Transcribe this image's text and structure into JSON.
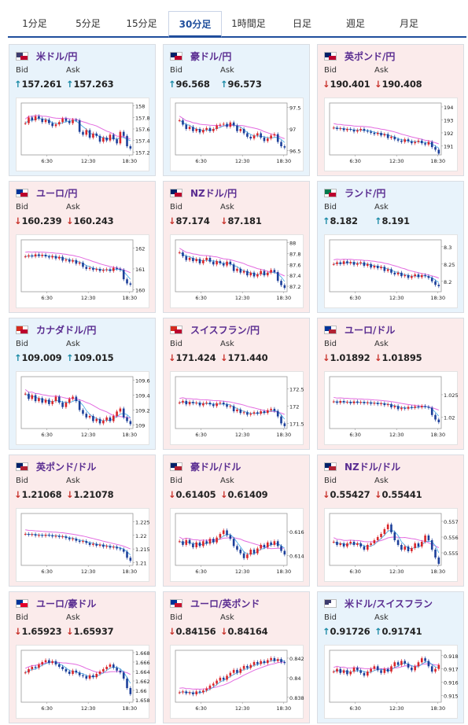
{
  "tabs": [
    {
      "label": "1分足",
      "active": false
    },
    {
      "label": "5分足",
      "active": false
    },
    {
      "label": "15分足",
      "active": false
    },
    {
      "label": "30分足",
      "active": true
    },
    {
      "label": "1時間足",
      "active": false
    },
    {
      "label": "日足",
      "active": false
    },
    {
      "label": "週足",
      "active": false
    },
    {
      "label": "月足",
      "active": false
    }
  ],
  "labels": {
    "bid": "Bid",
    "ask": "Ask"
  },
  "colors": {
    "up_bg": "#e8f3fb",
    "down_bg": "#fbebeb",
    "candle_up": "#d9262a",
    "candle_down": "#1d3f9a",
    "ma_long": "#e36be0",
    "ma_short": "#5bb4e8"
  },
  "cards": [
    {
      "name": "usd-jpy",
      "pair": "米ドル/円",
      "dir": "up",
      "bid": "157.261",
      "ask": "157.263",
      "flag": "us-jp",
      "chart_data": {
        "type": "candlestick",
        "x_ticks": [
          "6:30",
          "12:30",
          "18:30"
        ],
        "y_ticks": [
          "158",
          "157.8",
          "157.6",
          "157.4",
          "157.2"
        ],
        "ylim": [
          157.15,
          158.05
        ],
        "close": [
          157.7,
          157.8,
          157.75,
          157.82,
          157.78,
          157.72,
          157.76,
          157.7,
          157.65,
          157.68,
          157.72,
          157.78,
          157.74,
          157.7,
          157.76,
          157.75,
          157.55,
          157.5,
          157.58,
          157.45,
          157.52,
          157.48,
          157.38,
          157.45,
          157.4,
          157.5,
          157.42,
          157.35,
          157.55,
          157.48,
          157.3,
          157.26
        ]
      }
    },
    {
      "name": "aud-jpy",
      "pair": "豪ドル/円",
      "dir": "up",
      "bid": "96.568",
      "ask": "96.573",
      "flag": "au-jp",
      "chart_data": {
        "type": "candlestick",
        "x_ticks": [
          "6:30",
          "12:30",
          "18:30"
        ],
        "y_ticks": [
          "97.5",
          "97",
          "96.5"
        ],
        "ylim": [
          96.4,
          97.6
        ],
        "close": [
          97.2,
          97.1,
          97.0,
          97.05,
          96.95,
          97.0,
          96.92,
          96.98,
          97.02,
          96.95,
          97.0,
          97.08,
          97.1,
          97.12,
          97.05,
          97.15,
          97.08,
          96.95,
          97.0,
          96.9,
          96.82,
          96.78,
          96.85,
          96.9,
          96.8,
          96.72,
          96.78,
          96.85,
          96.88,
          96.7,
          96.6,
          96.57
        ]
      }
    },
    {
      "name": "gbp-jpy",
      "pair": "英ポンド/円",
      "dir": "down",
      "bid": "190.401",
      "ask": "190.408",
      "flag": "gb-jp",
      "chart_data": {
        "type": "candlestick",
        "x_ticks": [
          "6:30",
          "12:30",
          "18:30"
        ],
        "y_ticks": [
          "194",
          "193",
          "192",
          "191"
        ],
        "ylim": [
          190.3,
          194.3
        ],
        "close": [
          192.4,
          192.3,
          192.35,
          192.2,
          192.3,
          192.25,
          192.1,
          192.2,
          192.3,
          192.15,
          192.1,
          192.0,
          191.9,
          192.0,
          191.8,
          191.9,
          191.6,
          191.7,
          191.5,
          191.4,
          191.3,
          191.5,
          191.35,
          191.2,
          191.3,
          191.4,
          191.2,
          191.1,
          191.3,
          190.9,
          190.7,
          190.4
        ]
      }
    },
    {
      "name": "eur-jpy",
      "pair": "ユーロ/円",
      "dir": "down",
      "bid": "160.239",
      "ask": "160.243",
      "flag": "eu-jp",
      "chart_data": {
        "type": "candlestick",
        "x_ticks": [
          "6:30",
          "12:30",
          "18:30"
        ],
        "y_ticks": [
          "162",
          "161",
          "160"
        ],
        "ylim": [
          159.9,
          162.4
        ],
        "close": [
          161.6,
          161.65,
          161.6,
          161.7,
          161.62,
          161.68,
          161.6,
          161.55,
          161.62,
          161.5,
          161.58,
          161.4,
          161.45,
          161.35,
          161.42,
          161.25,
          161.3,
          161.1,
          161.0,
          161.05,
          160.95,
          161.0,
          160.9,
          160.95,
          160.98,
          160.9,
          161.05,
          161.0,
          160.95,
          160.5,
          160.3,
          160.24
        ]
      }
    },
    {
      "name": "nzd-jpy",
      "pair": "NZドル/円",
      "dir": "down",
      "bid": "87.174",
      "ask": "87.181",
      "flag": "nz-jp",
      "chart_data": {
        "type": "candlestick",
        "x_ticks": [
          "6:30",
          "12:30",
          "18:30"
        ],
        "y_ticks": [
          "88",
          "87.8",
          "87.6",
          "87.4",
          "87.2"
        ],
        "ylim": [
          87.1,
          88.05
        ],
        "close": [
          87.82,
          87.75,
          87.68,
          87.72,
          87.66,
          87.7,
          87.62,
          87.68,
          87.72,
          87.65,
          87.6,
          87.66,
          87.62,
          87.58,
          87.65,
          87.6,
          87.48,
          87.52,
          87.45,
          87.48,
          87.4,
          87.45,
          87.38,
          87.42,
          87.48,
          87.4,
          87.45,
          87.5,
          87.46,
          87.3,
          87.22,
          87.17
        ]
      }
    },
    {
      "name": "zar-jpy",
      "pair": "ランド/円",
      "dir": "up",
      "bid": "8.182",
      "ask": "8.191",
      "flag": "za-jp",
      "chart_data": {
        "type": "candlestick",
        "x_ticks": [
          "6:30",
          "12:30",
          "18:30"
        ],
        "y_ticks": [
          "8.3",
          "8.25",
          "8.2"
        ],
        "ylim": [
          8.17,
          8.32
        ],
        "close": [
          8.25,
          8.255,
          8.25,
          8.258,
          8.252,
          8.256,
          8.248,
          8.252,
          8.255,
          8.245,
          8.25,
          8.24,
          8.245,
          8.238,
          8.242,
          8.23,
          8.235,
          8.225,
          8.22,
          8.225,
          8.215,
          8.218,
          8.21,
          8.215,
          8.22,
          8.212,
          8.218,
          8.215,
          8.21,
          8.2,
          8.19,
          8.186
        ]
      }
    },
    {
      "name": "cad-jpy",
      "pair": "カナダドル/円",
      "dir": "up",
      "bid": "109.009",
      "ask": "109.015",
      "flag": "ca-jp",
      "chart_data": {
        "type": "candlestick",
        "x_ticks": [
          "6:30",
          "12:30",
          "18:30"
        ],
        "y_ticks": [
          "109.6",
          "109.4",
          "109.2",
          "109"
        ],
        "ylim": [
          108.95,
          109.65
        ],
        "close": [
          109.42,
          109.35,
          109.4,
          109.32,
          109.36,
          109.3,
          109.34,
          109.28,
          109.32,
          109.38,
          109.3,
          109.24,
          109.3,
          109.35,
          109.38,
          109.32,
          109.2,
          109.15,
          109.1,
          109.12,
          109.05,
          109.08,
          109.02,
          109.06,
          109.1,
          109.05,
          109.12,
          109.18,
          109.22,
          109.1,
          109.05,
          109.01
        ]
      }
    },
    {
      "name": "chf-jpy",
      "pair": "スイスフラン/円",
      "dir": "down",
      "bid": "171.424",
      "ask": "171.440",
      "flag": "ch-jp",
      "chart_data": {
        "type": "candlestick",
        "x_ticks": [
          "6:30",
          "12:30",
          "18:30"
        ],
        "y_ticks": [
          "172.5",
          "172",
          "171.5"
        ],
        "ylim": [
          171.35,
          172.85
        ],
        "close": [
          172.1,
          172.15,
          172.05,
          172.12,
          172.08,
          172.1,
          172.02,
          172.08,
          172.1,
          172.05,
          172.0,
          172.08,
          172.1,
          172.05,
          171.98,
          172.0,
          171.85,
          171.9,
          171.8,
          171.82,
          171.75,
          171.78,
          171.82,
          171.78,
          171.85,
          171.8,
          171.88,
          171.92,
          171.86,
          171.7,
          171.5,
          171.42
        ]
      }
    },
    {
      "name": "eur-usd",
      "pair": "ユーロ/ドル",
      "dir": "down",
      "bid": "1.01892",
      "ask": "1.01895",
      "flag": "eu-us",
      "chart_data": {
        "type": "candlestick",
        "x_ticks": [
          "6:30",
          "12:30",
          "18:30"
        ],
        "y_ticks": [
          "1.025",
          "1.02"
        ],
        "ylim": [
          1.0175,
          1.029
        ],
        "close": [
          1.0235,
          1.0232,
          1.0236,
          1.0233,
          1.0234,
          1.0231,
          1.0235,
          1.0232,
          1.0234,
          1.0231,
          1.0233,
          1.023,
          1.0232,
          1.0229,
          1.0231,
          1.0227,
          1.0229,
          1.0222,
          1.0225,
          1.0218,
          1.0221,
          1.0219,
          1.0223,
          1.0221,
          1.0224,
          1.0222,
          1.0225,
          1.0223,
          1.0221,
          1.0205,
          1.0195,
          1.0189
        ]
      }
    },
    {
      "name": "gbp-usd",
      "pair": "英ポンド/ドル",
      "dir": "down",
      "bid": "1.21068",
      "ask": "1.21078",
      "flag": "gb-us",
      "chart_data": {
        "type": "candlestick",
        "x_ticks": [
          "6:30",
          "12:30",
          "18:30"
        ],
        "y_ticks": [
          "1.225",
          "1.22",
          "1.215",
          "1.21"
        ],
        "ylim": [
          1.209,
          1.228
        ],
        "close": [
          1.2205,
          1.2202,
          1.2204,
          1.2199,
          1.2201,
          1.2198,
          1.2202,
          1.22,
          1.2196,
          1.2198,
          1.2194,
          1.2196,
          1.219,
          1.2185,
          1.2188,
          1.218,
          1.2176,
          1.2179,
          1.2172,
          1.2165,
          1.2169,
          1.2162,
          1.2166,
          1.2158,
          1.2161,
          1.2155,
          1.2158,
          1.2152,
          1.2149,
          1.214,
          1.2118,
          1.2107
        ]
      }
    },
    {
      "name": "aud-usd",
      "pair": "豪ドル/ドル",
      "dir": "down",
      "bid": "0.61405",
      "ask": "0.61409",
      "flag": "au-us",
      "chart_data": {
        "type": "candlestick",
        "x_ticks": [
          "6:30",
          "12:30",
          "18:30"
        ],
        "y_ticks": [
          "0.616",
          "0.614"
        ],
        "ylim": [
          0.6132,
          0.6175
        ],
        "close": [
          0.6152,
          0.6149,
          0.6153,
          0.615,
          0.6147,
          0.6151,
          0.6148,
          0.6152,
          0.615,
          0.6154,
          0.6151,
          0.6155,
          0.6158,
          0.6161,
          0.6157,
          0.6154,
          0.6148,
          0.6145,
          0.6142,
          0.6138,
          0.6141,
          0.6145,
          0.6142,
          0.6146,
          0.6149,
          0.6147,
          0.6151,
          0.6149,
          0.6152,
          0.6148,
          0.6144,
          0.6141
        ]
      }
    },
    {
      "name": "nzd-usd",
      "pair": "NZドル/ドル",
      "dir": "down",
      "bid": "0.55427",
      "ask": "0.55441",
      "flag": "nz-us",
      "chart_data": {
        "type": "candlestick",
        "x_ticks": [
          "6:30",
          "12:30",
          "18:30"
        ],
        "y_ticks": [
          "0.557",
          "0.556",
          "0.555"
        ],
        "ylim": [
          0.5542,
          0.5575
        ],
        "close": [
          0.5557,
          0.5555,
          0.5556,
          0.5554,
          0.5556,
          0.5557,
          0.5555,
          0.5556,
          0.5554,
          0.5552,
          0.5555,
          0.5556,
          0.5558,
          0.556,
          0.5562,
          0.5565,
          0.5568,
          0.5563,
          0.5558,
          0.5555,
          0.5552,
          0.5554,
          0.5551,
          0.5553,
          0.5556,
          0.5554,
          0.5557,
          0.5561,
          0.5558,
          0.5552,
          0.5547,
          0.5543
        ]
      }
    },
    {
      "name": "eur-aud",
      "pair": "ユーロ/豪ドル",
      "dir": "down",
      "bid": "1.65923",
      "ask": "1.65937",
      "flag": "eu-au",
      "chart_data": {
        "type": "candlestick",
        "x_ticks": [
          "6:30",
          "12:30",
          "18:30"
        ],
        "y_ticks": [
          "1.668",
          "1.666",
          "1.664",
          "1.662",
          "1.66",
          "1.658"
        ],
        "ylim": [
          1.6575,
          1.6685
        ],
        "close": [
          1.6638,
          1.6645,
          1.665,
          1.6648,
          1.6655,
          1.666,
          1.6664,
          1.6658,
          1.6662,
          1.6655,
          1.665,
          1.6645,
          1.664,
          1.6635,
          1.6642,
          1.6638,
          1.6632,
          1.663,
          1.6625,
          1.6632,
          1.6628,
          1.6635,
          1.664,
          1.6645,
          1.665,
          1.6655,
          1.6648,
          1.6642,
          1.6638,
          1.6625,
          1.6605,
          1.6592
        ]
      }
    },
    {
      "name": "eur-gbp",
      "pair": "ユーロ/英ポンド",
      "dir": "down",
      "bid": "0.84156",
      "ask": "0.84164",
      "flag": "eu-gb",
      "chart_data": {
        "type": "candlestick",
        "x_ticks": [
          "6:30",
          "12:30",
          "18:30"
        ],
        "y_ticks": [
          "0.842",
          "0.84",
          "0.838"
        ],
        "ylim": [
          0.8375,
          0.8428
        ],
        "close": [
          0.8385,
          0.8386,
          0.8384,
          0.8385,
          0.8383,
          0.8386,
          0.8385,
          0.8387,
          0.8389,
          0.8392,
          0.8394,
          0.8397,
          0.84,
          0.8398,
          0.8402,
          0.8405,
          0.8408,
          0.8405,
          0.8409,
          0.8412,
          0.841,
          0.8413,
          0.8416,
          0.8414,
          0.8417,
          0.8415,
          0.8418,
          0.842,
          0.8417,
          0.8419,
          0.8416,
          0.8415
        ]
      }
    },
    {
      "name": "usd-chf",
      "pair": "米ドル/スイスフラン",
      "dir": "up",
      "bid": "0.91726",
      "ask": "0.91741",
      "flag": "us-ch",
      "chart_data": {
        "type": "candlestick",
        "x_ticks": [
          "6:30",
          "12:30",
          "18:30"
        ],
        "y_ticks": [
          "0.918",
          "0.917",
          "0.916",
          "0.915"
        ],
        "ylim": [
          0.9145,
          0.9184
        ],
        "close": [
          0.9168,
          0.917,
          0.9167,
          0.9169,
          0.9166,
          0.9168,
          0.9171,
          0.9169,
          0.9167,
          0.9165,
          0.9168,
          0.917,
          0.9172,
          0.9169,
          0.9167,
          0.917,
          0.9168,
          0.9172,
          0.9175,
          0.9173,
          0.9176,
          0.9174,
          0.9171,
          0.9169,
          0.9172,
          0.9175,
          0.9178,
          0.9176,
          0.9172,
          0.9168,
          0.917,
          0.9173
        ]
      }
    }
  ]
}
